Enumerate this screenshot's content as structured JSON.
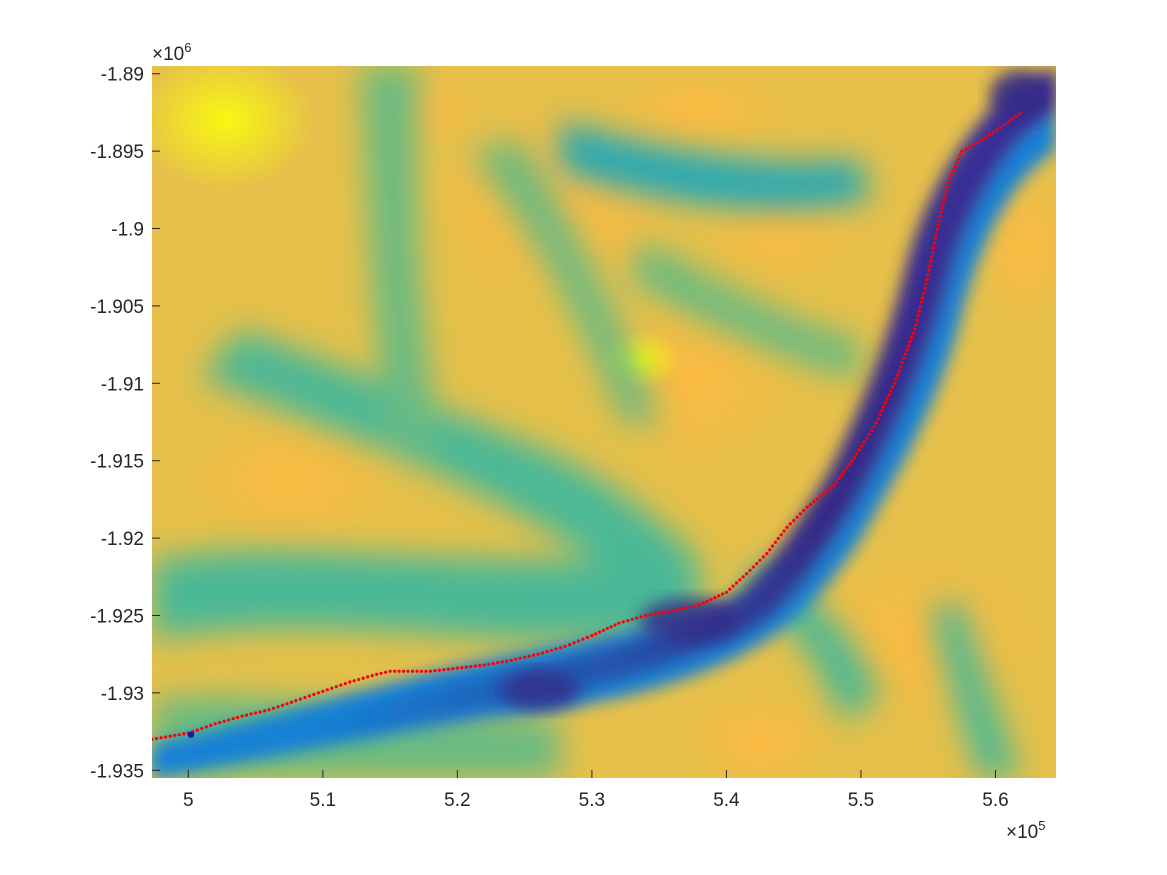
{
  "chart_data": {
    "type": "scatter",
    "title": "",
    "xlabel": "",
    "ylabel": "",
    "xlim": [
      497300,
      564500
    ],
    "ylim": [
      -1935500,
      -1889500
    ],
    "x_exponent_label": "×10",
    "x_exponent_power": "5",
    "y_exponent_label": "×10",
    "y_exponent_power": "6",
    "xticks": [
      {
        "value": 500000,
        "label": "5"
      },
      {
        "value": 510000,
        "label": "5.1"
      },
      {
        "value": 520000,
        "label": "5.2"
      },
      {
        "value": 530000,
        "label": "5.3"
      },
      {
        "value": 540000,
        "label": "5.4"
      },
      {
        "value": 550000,
        "label": "5.5"
      },
      {
        "value": 560000,
        "label": "5.6"
      }
    ],
    "yticks": [
      {
        "value": -1890000,
        "label": "-1.89"
      },
      {
        "value": -1895000,
        "label": "-1.895"
      },
      {
        "value": -1900000,
        "label": "-1.9"
      },
      {
        "value": -1905000,
        "label": "-1.905"
      },
      {
        "value": -1910000,
        "label": "-1.91"
      },
      {
        "value": -1915000,
        "label": "-1.915"
      },
      {
        "value": -1920000,
        "label": "-1.92"
      },
      {
        "value": -1925000,
        "label": "-1.925"
      },
      {
        "value": -1930000,
        "label": "-1.93"
      },
      {
        "value": -1935000,
        "label": "-1.935"
      }
    ],
    "background": "elevation heatmap (parula colormap): dark blue valley floor, yellow ridges",
    "colormap": [
      "#352a87",
      "#0f5cdd",
      "#1481d6",
      "#06a4ca",
      "#2eb7a4",
      "#87bf77",
      "#d1bb59",
      "#fec832",
      "#f9fb0e"
    ],
    "series": [
      {
        "color": "#ff0000",
        "marker": "dot",
        "x": [
          497300,
          500000,
          502000,
          504000,
          506000,
          508000,
          510000,
          512000,
          514000,
          515000,
          518000,
          520000,
          522000,
          524000,
          526000,
          528000,
          530000,
          532000,
          534000,
          536000,
          538000,
          540000,
          541500,
          543000,
          544500,
          546000,
          548000,
          549500,
          551000,
          552500,
          554000,
          555000,
          555800,
          556500,
          557500,
          559000,
          561800
        ],
        "y": [
          -1933000,
          -1932600,
          -1932000,
          -1931500,
          -1931100,
          -1930500,
          -1929900,
          -1929300,
          -1928800,
          -1928600,
          -1928600,
          -1928400,
          -1928200,
          -1927900,
          -1927500,
          -1927000,
          -1926300,
          -1925500,
          -1925000,
          -1924700,
          -1924300,
          -1923500,
          -1922300,
          -1921000,
          -1919300,
          -1918000,
          -1916600,
          -1914800,
          -1912800,
          -1910000,
          -1906500,
          -1903000,
          -1899500,
          -1897000,
          -1895000,
          -1894300,
          -1892600
        ]
      },
      {
        "color": "#1a1aa0",
        "marker": "dot",
        "x": [
          500200
        ],
        "y": [
          -1932700
        ]
      }
    ]
  }
}
